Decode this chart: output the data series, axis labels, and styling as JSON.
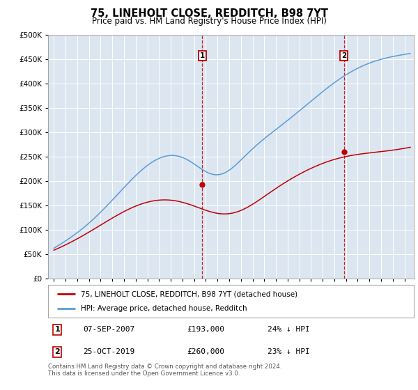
{
  "title": "75, LINEHOLT CLOSE, REDDITCH, B98 7YT",
  "subtitle": "Price paid vs. HM Land Registry's House Price Index (HPI)",
  "ytick_values": [
    0,
    50000,
    100000,
    150000,
    200000,
    250000,
    300000,
    350000,
    400000,
    450000,
    500000
  ],
  "ylim": [
    0,
    500000
  ],
  "xlim_start": 1994.5,
  "xlim_end": 2025.8,
  "hpi_color": "#5b9bd5",
  "price_color": "#c00000",
  "plot_bg_color": "#dce6f1",
  "transaction1_x": 2007.69,
  "transaction1_y": 193000,
  "transaction2_x": 2019.81,
  "transaction2_y": 260000,
  "legend_label1": "75, LINEHOLT CLOSE, REDDITCH, B98 7YT (detached house)",
  "legend_label2": "HPI: Average price, detached house, Redditch",
  "table_row1": [
    "1",
    "07-SEP-2007",
    "£193,000",
    "24% ↓ HPI"
  ],
  "table_row2": [
    "2",
    "25-OCT-2019",
    "£260,000",
    "23% ↓ HPI"
  ],
  "footer": "Contains HM Land Registry data © Crown copyright and database right 2024.\nThis data is licensed under the Open Government Licence v3.0."
}
